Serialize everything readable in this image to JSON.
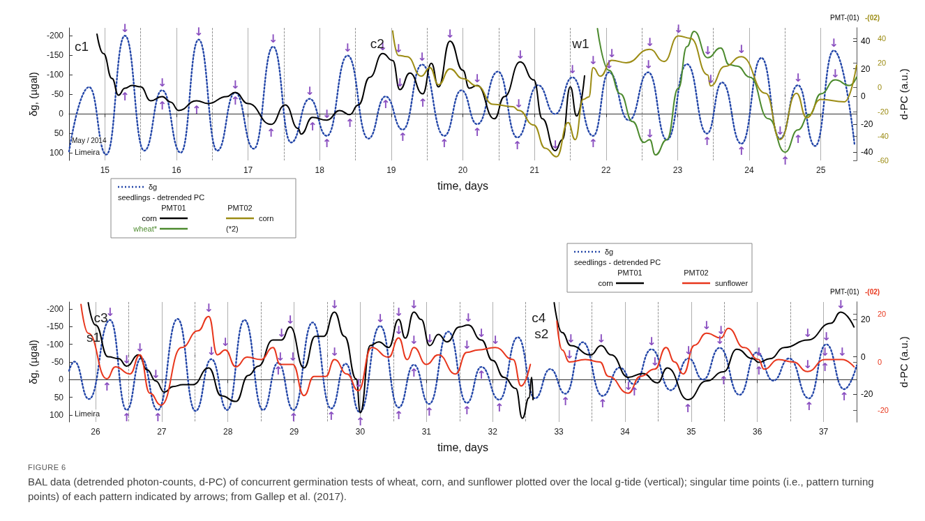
{
  "chart_data": [
    {
      "type": "line",
      "xlabel": "time, days",
      "ylabel": "δg, (µgal)",
      "y2label": "d-PC (a.u.)",
      "legend_title": "seedlings - detrended PC",
      "legend": "bottom left",
      "grid": "x",
      "marker": "none",
      "xlim": [
        14.5,
        25.5
      ],
      "xticks": [
        15,
        {
          "value": 15.5,
          "label": null
        },
        16,
        {
          "value": 16.5,
          "label": null
        },
        17,
        {
          "value": 17.5,
          "label": null
        },
        18,
        {
          "value": 18.5,
          "label": null
        },
        19,
        {
          "value": 19.5,
          "label": null
        },
        20,
        {
          "value": 20.5,
          "label": null
        },
        21,
        {
          "value": 21.5,
          "label": null
        },
        22,
        {
          "value": 22.5,
          "label": null
        },
        23,
        {
          "value": 23.5,
          "label": null
        },
        24,
        {
          "value": 24.5,
          "label": null
        },
        25
      ],
      "ylim": [
        120,
        -220
      ],
      "yticks": [
        100,
        50,
        0,
        -50,
        -100,
        -150,
        -200
      ],
      "y2lim": [
        -46,
        49.5
      ],
      "y2ticks": [
        -40,
        -20,
        0,
        20,
        40
      ],
      "y3lim": [
        -60,
        48.5
      ],
      "y3ticks": [
        -60,
        -40,
        -20,
        0,
        20,
        40
      ],
      "series": [
        {
          "name": "δg",
          "color": "#2346a8",
          "line_style": "dotted",
          "x": [
            14.5,
            14.78,
            15.02,
            15.28,
            15.55,
            15.8,
            16.06,
            16.31,
            16.57,
            16.82,
            17.08,
            17.35,
            17.6,
            17.86,
            18.1,
            18.39,
            18.68,
            18.92,
            19.16,
            19.43,
            19.74,
            19.98,
            20.2,
            20.49,
            20.76,
            21.05,
            21.29,
            21.53,
            21.82,
            22.04,
            22.32,
            22.59,
            22.85,
            23.13,
            23.41,
            23.62,
            23.89,
            24.17,
            24.43,
            24.68,
            24.92,
            25.18,
            25.47
          ],
          "values": [
            97,
            -68,
            105,
            -200,
            95,
            -60,
            100,
            -190,
            95,
            -54,
            90,
            -172,
            74,
            -38,
            57,
            -149,
            64,
            -44,
            41,
            -126,
            57,
            -60,
            27,
            -108,
            61,
            -73,
            1,
            -93,
            57,
            -106,
            17,
            -106,
            67,
            -127,
            51,
            -80,
            77,
            -143,
            64,
            -73,
            83,
            -162,
            78
          ]
        },
        {
          "name": "corn",
          "color": "#000000",
          "axis": "y2",
          "x": [
            14.89,
            14.98,
            15.1,
            15.19,
            15.28,
            15.38,
            15.5,
            15.64,
            15.8,
            15.92,
            16.03,
            16.28,
            16.44,
            16.7,
            16.82,
            17.0,
            17.32,
            17.52,
            17.7,
            17.74,
            17.9,
            18.1,
            18.28,
            18.42,
            18.54,
            18.7,
            18.88,
            19.02,
            19.12,
            19.26,
            19.44,
            19.56,
            19.66,
            19.82,
            20.0,
            20.09,
            20.2,
            20.44,
            20.58,
            20.8,
            20.99,
            21.11,
            21.29,
            21.39,
            21.5,
            21.59,
            21.7
          ],
          "values": [
            45,
            31,
            13,
            1,
            6,
            8,
            7,
            -3,
            0,
            -4,
            -10,
            -3,
            -5,
            0,
            3,
            -5,
            -20,
            -6,
            -23,
            -27,
            -15,
            -17,
            -10,
            -13,
            -6,
            14,
            31,
            26,
            5,
            17,
            2,
            24,
            7,
            40,
            19,
            6,
            8,
            -16,
            0,
            25,
            12,
            -16,
            -39,
            -31,
            7,
            -14,
            15
          ]
        },
        {
          "name": "wheat*",
          "color": "#4c8a2e",
          "axis": "y2",
          "x": [
            21.88,
            22.04,
            22.2,
            22.37,
            22.53,
            22.61,
            22.69,
            22.85,
            23.01,
            23.13,
            23.23,
            23.42,
            23.6,
            23.72,
            23.83,
            24.01,
            24.27,
            24.5,
            24.68,
            24.84,
            25.0,
            25.2,
            25.4,
            25.5
          ],
          "values": [
            49,
            19,
            2,
            -18,
            -33,
            -31,
            -42,
            -31,
            6,
            36,
            47,
            28,
            35,
            23,
            22,
            14,
            -16,
            -40,
            -24,
            -13,
            2,
            12,
            8,
            14
          ]
        },
        {
          "name": "corn",
          "color": "#9c8c14",
          "axis": "y3",
          "x": [
            19.02,
            19.1,
            19.22,
            19.42,
            19.54,
            19.66,
            19.82,
            20.0,
            20.2,
            20.42,
            20.7,
            20.78,
            20.99,
            21.15,
            21.31,
            21.47,
            21.57,
            21.68,
            21.76,
            21.82,
            21.92,
            22.08,
            22.28,
            22.61,
            22.81,
            23.01,
            23.18,
            23.42,
            23.46,
            23.66,
            23.89,
            24.23,
            24.43,
            24.66,
            24.8,
            25.0,
            25.33,
            25.5
          ],
          "values": [
            46,
            26,
            25,
            9,
            16,
            2,
            15,
            7,
            1,
            -14,
            -16,
            -19,
            -31,
            -50,
            -57,
            -29,
            -43,
            -10,
            -8,
            16,
            9,
            22,
            20,
            31,
            21,
            42,
            40,
            10,
            1,
            17,
            25,
            -5,
            -43,
            -5,
            -25,
            -10,
            -12,
            18
          ]
        }
      ],
      "annotations": [
        "PMT-(01)",
        "-(02)",
        "May / 2014",
        "Limeira",
        "PMT01",
        "PMT02",
        "(*2)",
        "c1",
        "c2",
        "w1",
        {
          "text": "↓",
          "x": 15.28,
          "y": -200
        },
        {
          "text": "↑",
          "x": 15.28,
          "y": -63
        },
        {
          "text": "↓",
          "x": 15.8,
          "y": -60
        },
        {
          "text": "↑",
          "x": 15.8,
          "y": -41
        },
        {
          "text": "↓",
          "x": 16.31,
          "y": -190
        },
        {
          "text": "↑",
          "x": 16.28,
          "y": -30
        },
        {
          "text": "↓",
          "x": 16.82,
          "y": -54
        },
        {
          "text": "↑",
          "x": 16.82,
          "y": -52
        },
        {
          "text": "↓",
          "x": 17.35,
          "y": -172
        },
        {
          "text": "↑",
          "x": 17.32,
          "y": 30
        },
        {
          "text": "↓",
          "x": 17.86,
          "y": -38
        },
        {
          "text": "↑",
          "x": 17.9,
          "y": 13
        },
        {
          "text": "↓",
          "x": 18.1,
          "y": 20
        },
        {
          "text": "↑",
          "x": 18.1,
          "y": 57
        },
        {
          "text": "↓",
          "x": 18.39,
          "y": -149
        },
        {
          "text": "↑",
          "x": 18.42,
          "y": 5
        },
        {
          "text": "↓",
          "x": 18.88,
          "y": -153
        },
        {
          "text": "↑",
          "x": 18.92,
          "y": -44
        },
        {
          "text": "↑",
          "x": 19.16,
          "y": 41
        },
        {
          "text": "↓",
          "x": 19.1,
          "y": -148
        },
        {
          "text": "↓",
          "x": 19.12,
          "y": -59
        },
        {
          "text": "↓",
          "x": 19.43,
          "y": -126
        },
        {
          "text": "↑",
          "x": 19.44,
          "y": -48
        },
        {
          "text": "↓",
          "x": 19.82,
          "y": -185
        },
        {
          "text": "↑",
          "x": 19.74,
          "y": 57
        },
        {
          "text": "↓",
          "x": 20.2,
          "y": -70
        },
        {
          "text": "↑",
          "x": 20.2,
          "y": 27
        },
        {
          "text": "↓",
          "x": 20.8,
          "y": -131
        },
        {
          "text": "↓",
          "x": 20.78,
          "y": -7
        },
        {
          "text": "↑",
          "x": 20.76,
          "y": 61
        },
        {
          "text": "↓",
          "x": 21.29,
          "y": 99
        },
        {
          "text": "↓",
          "x": 21.53,
          "y": -93
        },
        {
          "text": "↓",
          "x": 21.82,
          "y": -117
        },
        {
          "text": "↑",
          "x": 21.82,
          "y": 57
        },
        {
          "text": "↓",
          "x": 22.08,
          "y": -135
        },
        {
          "text": "↓",
          "x": 22.04,
          "y": -106
        },
        {
          "text": "↓",
          "x": 22.61,
          "y": -164
        },
        {
          "text": "↓",
          "x": 22.59,
          "y": -106
        },
        {
          "text": "↓",
          "x": 22.61,
          "y": 70
        },
        {
          "text": "↓",
          "x": 23.01,
          "y": -198
        },
        {
          "text": "↓",
          "x": 23.42,
          "y": -142
        },
        {
          "text": "↓",
          "x": 23.46,
          "y": -69
        },
        {
          "text": "↑",
          "x": 23.41,
          "y": 51
        },
        {
          "text": "↓",
          "x": 23.89,
          "y": -145
        },
        {
          "text": "↑",
          "x": 23.89,
          "y": 77
        },
        {
          "text": "↓",
          "x": 24.43,
          "y": 64
        },
        {
          "text": "↑",
          "x": 24.5,
          "y": 102
        },
        {
          "text": "↑",
          "x": 24.68,
          "y": 45
        },
        {
          "text": "↓",
          "x": 24.68,
          "y": -73
        },
        {
          "text": "↓",
          "x": 25.18,
          "y": -162
        },
        {
          "text": "↓",
          "x": 25.2,
          "y": -84
        }
      ]
    },
    {
      "type": "line",
      "xlabel": "time, days",
      "ylabel": "δg, (µgal)",
      "y2label": "d-PC (a.u.)",
      "legend_title": "seedlings - detrended PC",
      "legend": "top right",
      "grid": "x",
      "marker": "none",
      "xlim": [
        25.6,
        37.5
      ],
      "xticks": [
        26,
        {
          "value": 26.5,
          "label": null
        },
        27,
        {
          "value": 27.5,
          "label": null
        },
        28,
        {
          "value": 28.5,
          "label": null
        },
        29,
        {
          "value": 29.5,
          "label": null
        },
        30,
        {
          "value": 30.5,
          "label": null
        },
        31,
        {
          "value": 31.5,
          "label": null
        },
        32,
        {
          "value": 32.5,
          "label": null
        },
        33,
        {
          "value": 33.5,
          "label": null
        },
        34,
        {
          "value": 34.5,
          "label": null
        },
        35,
        {
          "value": 35.5,
          "label": null
        },
        36,
        {
          "value": 36.5,
          "label": null
        },
        37
      ],
      "ylim": [
        120,
        -220
      ],
      "yticks": [
        100,
        50,
        0,
        -50,
        -100,
        -150,
        -200
      ],
      "y2lim": [
        -35,
        29.4
      ],
      "y2ticks": [
        -20,
        0,
        20
      ],
      "y3lim": [
        -25,
        25
      ],
      "y3ticks": [
        -20,
        0,
        20
      ],
      "series": [
        {
          "name": "δg",
          "color": "#2346a8",
          "line_style": "dotted",
          "x": [
            25.6,
            25.68,
            25.9,
            26.22,
            26.47,
            26.69,
            26.94,
            27.24,
            27.51,
            27.75,
            27.99,
            28.25,
            28.53,
            28.76,
            28.99,
            29.28,
            29.56,
            29.78,
            29.99,
            30.3,
            30.58,
            30.81,
            31.04,
            31.33,
            31.61,
            31.83,
            32.1,
            32.38,
            32.64,
            32.87,
            33.1,
            33.36,
            33.66,
            33.92,
            34.14,
            34.4,
            34.69,
            34.96,
            35.18,
            35.43,
            35.73,
            35.99,
            36.24,
            36.48,
            36.78,
            37.04,
            37.31,
            37.5
          ],
          "values": [
            -25,
            -51,
            55,
            -169,
            86,
            -61,
            86,
            -172,
            89,
            -58,
            86,
            -169,
            86,
            -48,
            86,
            -162,
            82,
            -45,
            92,
            -152,
            79,
            -42,
            69,
            -136,
            66,
            -36,
            57,
            -120,
            53,
            -30,
            40,
            -106,
            46,
            -34,
            13,
            -86,
            30,
            -60,
            0,
            -90,
            43,
            -77,
            3,
            -60,
            53,
            -100,
            27,
            -40
          ]
        },
        {
          "name": "corn",
          "color": "#000000",
          "axis": "y2",
          "x": [
            25.89,
            26.0,
            26.19,
            26.35,
            26.47,
            26.65,
            26.78,
            26.91,
            27.04,
            27.17,
            27.32,
            27.47,
            27.71,
            27.9,
            28.12,
            28.31,
            28.46,
            28.68,
            28.81,
            28.94,
            29.15,
            29.32,
            29.45,
            29.61,
            29.76,
            29.94,
            30.0,
            30.15,
            30.28,
            30.43,
            30.58,
            30.68,
            30.81,
            30.92,
            31.05,
            31.18,
            31.31,
            31.5,
            31.63,
            31.83,
            32.0,
            32.17,
            32.35,
            32.45,
            32.55,
            32.59,
            32.61,
            32.8,
            32.93,
            33.05,
            33.18,
            33.48,
            33.64,
            33.79,
            34.05,
            34.27,
            34.49,
            34.64,
            34.95,
            35.23,
            35.49,
            35.69,
            35.93,
            36.02,
            36.19,
            36.41,
            36.76,
            37.11,
            37.26,
            37.46
          ],
          "values": [
            29,
            17,
            0,
            -1,
            -5,
            1,
            -7,
            -13,
            -19,
            -16,
            -15,
            -15,
            -6,
            -21,
            -24,
            -10,
            -5,
            9,
            9,
            16,
            -6,
            11,
            11,
            24,
            11,
            -12,
            -30,
            6,
            8,
            5,
            20,
            10,
            24,
            20,
            6,
            12,
            8,
            16,
            17,
            9,
            -2,
            -11,
            -17,
            -33,
            -22,
            -11,
            -23,
            null,
            29,
            13,
            6,
            1,
            6,
            1,
            -11,
            -9,
            -14,
            -6,
            -23,
            -13,
            -8,
            4,
            -1,
            -3,
            -1,
            5,
            9,
            18,
            24,
            16
          ]
        },
        {
          "name": "sunflower",
          "color": "#e8361c",
          "axis": "y3",
          "x": [
            25.78,
            25.89,
            26.17,
            26.3,
            26.52,
            26.67,
            26.82,
            26.99,
            27.3,
            27.55,
            27.71,
            27.84,
            27.96,
            28.12,
            28.29,
            28.5,
            28.68,
            28.79,
            28.98,
            29.15,
            29.3,
            29.48,
            29.61,
            29.8,
            29.97,
            30.17,
            30.43,
            30.58,
            30.71,
            30.81,
            31.0,
            31.18,
            31.44,
            31.61,
            31.78,
            32.04,
            32.31,
            32.43,
            32.57,
            32.8,
            32.97,
            33.05,
            33.16,
            33.4,
            33.62,
            33.75,
            34.05,
            34.23,
            34.45,
            34.62,
            34.75,
            34.88,
            35.05,
            35.23,
            35.45,
            35.56,
            35.8,
            36.02,
            36.1,
            36.32,
            36.54,
            36.76,
            37.02,
            37.28,
            37.46
          ],
          "values": [
            24,
            12,
            -7,
            -2,
            -5,
            3,
            -13,
            -18,
            6,
            13,
            19,
            3,
            5,
            -2,
            2,
            1,
            6,
            -1,
            -1,
            -14,
            -6,
            -6,
            1,
            -5,
            -12,
            6,
            2,
            10,
            1,
            6,
            -1,
            3,
            -5,
            4,
            5,
            6,
            1,
            -10,
            -1,
            null,
            17,
            5,
            0,
            1,
            0,
            -6,
            -13,
            -6,
            -3,
            6,
            0,
            -5,
            7,
            12,
            10,
            14,
            6,
            1,
            -3,
            1,
            0,
            -4,
            1,
            1,
            -2
          ]
        }
      ],
      "annotations": [
        "PMT-(01)",
        "-(02)",
        "Limeira",
        "PMT01",
        "PMT02",
        "FIGURE 6",
        "BAL data (detrended photon-counts, d-PC) of concurrent germination tests of wheat, corn, and sunflower plotted over the local g-tide (vertical); singular time points (i.e., pattern turning points) of each pattern indicated by arrows; from Gallep et al. (2017).",
        "c3",
        "s1",
        "c4",
        "s2",
        {
          "text": "↓",
          "x": 26.22,
          "y": -169
        },
        {
          "text": "↑",
          "x": 26.17,
          "y": -2
        },
        {
          "text": "↓",
          "x": 26.47,
          "y": -36
        },
        {
          "text": "↑",
          "x": 26.47,
          "y": 86
        },
        {
          "text": "↓",
          "x": 26.67,
          "y": -68
        },
        {
          "text": "↓",
          "x": 26.91,
          "y": 6
        },
        {
          "text": "↑",
          "x": 26.94,
          "y": 86
        },
        {
          "text": "↓",
          "x": 27.71,
          "y": -181
        },
        {
          "text": "↓",
          "x": 27.96,
          "y": -84
        },
        {
          "text": "↓",
          "x": 27.75,
          "y": -58
        },
        {
          "text": "↓",
          "x": 28.81,
          "y": -111
        },
        {
          "text": "↓",
          "x": 28.79,
          "y": -43
        },
        {
          "text": "↑",
          "x": 28.76,
          "y": -48
        },
        {
          "text": "↓",
          "x": 28.94,
          "y": -148
        },
        {
          "text": "↓",
          "x": 28.98,
          "y": -43
        },
        {
          "text": "↑",
          "x": 28.99,
          "y": 86
        },
        {
          "text": "↓",
          "x": 29.61,
          "y": -191
        },
        {
          "text": "↓",
          "x": 29.61,
          "y": -57
        },
        {
          "text": "↑",
          "x": 29.56,
          "y": 82
        },
        {
          "text": "↓",
          "x": 29.97,
          "y": 33
        },
        {
          "text": "↑",
          "x": 30.0,
          "y": 97
        },
        {
          "text": "↓",
          "x": 30.3,
          "y": -152
        },
        {
          "text": "↓",
          "x": 30.58,
          "y": -170
        },
        {
          "text": "↓",
          "x": 30.58,
          "y": -119
        },
        {
          "text": "↑",
          "x": 30.58,
          "y": 79
        },
        {
          "text": "↓",
          "x": 30.81,
          "y": -191
        },
        {
          "text": "↓",
          "x": 30.81,
          "y": -91
        },
        {
          "text": "↑",
          "x": 30.81,
          "y": -42
        },
        {
          "text": "↓",
          "x": 31.05,
          "y": -95
        },
        {
          "text": "↑",
          "x": 31.04,
          "y": 69
        },
        {
          "text": "↓",
          "x": 31.63,
          "y": -154
        },
        {
          "text": "↓",
          "x": 31.61,
          "y": -77
        },
        {
          "text": "↑",
          "x": 31.61,
          "y": 66
        },
        {
          "text": "↓",
          "x": 31.83,
          "y": -111
        },
        {
          "text": "↑",
          "x": 31.83,
          "y": -36
        },
        {
          "text": "↓",
          "x": 32.04,
          "y": -91
        },
        {
          "text": "↑",
          "x": 32.1,
          "y": 57
        },
        {
          "text": "↓",
          "x": 33.18,
          "y": -95
        },
        {
          "text": "↓",
          "x": 33.16,
          "y": -50
        },
        {
          "text": "↑",
          "x": 33.1,
          "y": 40
        },
        {
          "text": "↓",
          "x": 33.64,
          "y": -95
        },
        {
          "text": "↑",
          "x": 33.66,
          "y": 46
        },
        {
          "text": "↓",
          "x": 34.05,
          "y": 40
        },
        {
          "text": "↑",
          "x": 34.14,
          "y": 13
        },
        {
          "text": "↓",
          "x": 34.45,
          "y": -29
        },
        {
          "text": "↓",
          "x": 34.4,
          "y": -86
        },
        {
          "text": "↓",
          "x": 34.96,
          "y": -60
        },
        {
          "text": "↑",
          "x": 34.95,
          "y": 60
        },
        {
          "text": "↓",
          "x": 35.23,
          "y": -133
        },
        {
          "text": "↓",
          "x": 35.45,
          "y": -119
        },
        {
          "text": "↓",
          "x": 35.43,
          "y": -90
        },
        {
          "text": "↑",
          "x": 35.49,
          "y": -20
        },
        {
          "text": "↓",
          "x": 36.02,
          "y": -57
        },
        {
          "text": "↑",
          "x": 36.02,
          "y": -47
        },
        {
          "text": "↓",
          "x": 36.76,
          "y": -111
        },
        {
          "text": "↓",
          "x": 36.76,
          "y": -22
        },
        {
          "text": "↑",
          "x": 36.78,
          "y": 53
        },
        {
          "text": "↓",
          "x": 37.02,
          "y": -57
        },
        {
          "text": "↑",
          "x": 37.02,
          "y": -57
        },
        {
          "text": "↓",
          "x": 37.04,
          "y": -100
        },
        {
          "text": "↓",
          "x": 37.28,
          "y": -57
        },
        {
          "text": "↑",
          "x": 37.31,
          "y": 27
        },
        {
          "text": "↓",
          "x": 37.26,
          "y": -191
        }
      ]
    }
  ]
}
